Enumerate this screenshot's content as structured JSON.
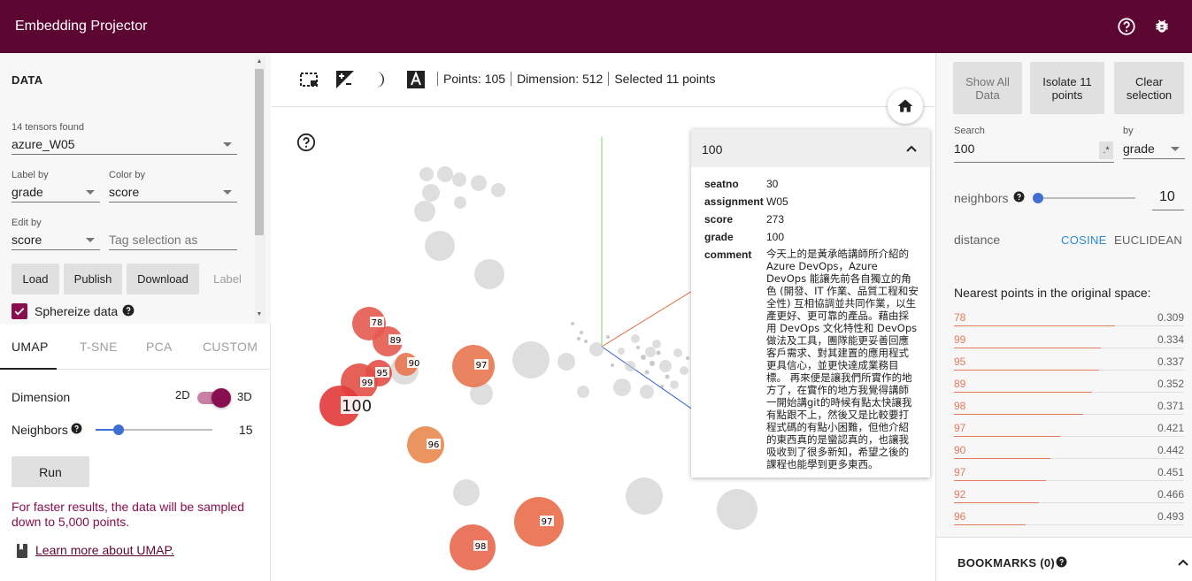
{
  "app": {
    "title": "Embedding Projector",
    "header_icons": [
      "help-icon",
      "bug-report-icon"
    ],
    "header_color": "#5c0632"
  },
  "data_panel": {
    "section_title": "DATA",
    "tensors_found": "14 tensors found",
    "tensor": "azure_W05",
    "label_by": {
      "label": "Label by",
      "value": "grade"
    },
    "color_by": {
      "label": "Color by",
      "value": "score"
    },
    "edit_by": {
      "label": "Edit by",
      "value": "score"
    },
    "tag_placeholder": "Tag selection as",
    "buttons": {
      "load": "Load",
      "publish": "Publish",
      "download": "Download",
      "label": "Label"
    },
    "sphereize": "Sphereize data"
  },
  "projection": {
    "tabs": [
      "UMAP",
      "T-SNE",
      "PCA",
      "CUSTOM"
    ],
    "active_tab": "UMAP",
    "dimension_label": "Dimension",
    "dim_2d": "2D",
    "dim_3d": "3D",
    "neighbors_label": "Neighbors",
    "neighbors_value": "15",
    "neighbors_fraction": 0.2,
    "run": "Run",
    "warning": "For faster results, the data will be sampled down to 5,000 points.",
    "learn_more": "Learn more about UMAP."
  },
  "toolbar": {
    "icons": [
      "bounding-box-select-icon",
      "night-mode-icon",
      "contrast-icon",
      "label-text-icon"
    ],
    "points": "Points: 105",
    "dimension": "Dimension: 512",
    "selected": "Selected 11 points"
  },
  "inspector": {
    "title": "100",
    "fields": [
      {
        "key": "seatno",
        "value": "30"
      },
      {
        "key": "assignment",
        "value": "W05"
      },
      {
        "key": "score",
        "value": "273"
      },
      {
        "key": "grade",
        "value": "100"
      }
    ],
    "comment_key": "comment",
    "comment": "今天上的是黃承皓講師所介紹的 Azure DevOps，Azure DevOps 能讓先前各自獨立的角色 (開發、IT 作業、品質工程和安全性) 互相協調並共同作業，以生產更好、更可靠的產品。藉由採用 DevOps 文化特性和 DevOps 做法及工具，團隊能更妥善回應客戶需求、對其建置的應用程式更具信心，並更快達成業務目標。 再來便是讓我們所實作的地方了，在實作的地方我覺得講師一開始講git的時候有點太快讓我有點跟不上，然後又是比較要打程式碼的有點小困難，但他介紹的東西真的是蠻認真的，也讓我吸收到了很多新知，希望之後的課程也能學到更多東西。"
  },
  "scatter_labels": {
    "selected": "100",
    "points": [
      "78",
      "89",
      "99",
      "95",
      "90",
      "97",
      "96",
      "97",
      "98"
    ]
  },
  "right_panel": {
    "buttons": {
      "show_all": "Show All Data",
      "isolate": "Isolate 11 points",
      "clear": "Clear selection"
    },
    "search_label": "Search",
    "search_value": "100",
    "regex": ".*",
    "by_label": "by",
    "by_value": "grade",
    "neighbors_label": "neighbors",
    "neighbors_value": "10",
    "neighbors_fraction": 0.0,
    "distance_label": "distance",
    "cosine": "COSINE",
    "euclidean": "EUCLIDEAN",
    "nearest_title": "Nearest points in the original space:",
    "nearest": [
      {
        "label": "78",
        "value": "0.309",
        "fill": 0.7
      },
      {
        "label": "99",
        "value": "0.334",
        "fill": 0.64
      },
      {
        "label": "95",
        "value": "0.337",
        "fill": 0.63
      },
      {
        "label": "89",
        "value": "0.352",
        "fill": 0.6
      },
      {
        "label": "98",
        "value": "0.371",
        "fill": 0.56
      },
      {
        "label": "97",
        "value": "0.421",
        "fill": 0.46
      },
      {
        "label": "90",
        "value": "0.442",
        "fill": 0.42
      },
      {
        "label": "97",
        "value": "0.451",
        "fill": 0.4
      },
      {
        "label": "92",
        "value": "0.466",
        "fill": 0.37
      },
      {
        "label": "96",
        "value": "0.493",
        "fill": 0.31
      }
    ],
    "bookmarks": "BOOKMARKS (0)"
  }
}
